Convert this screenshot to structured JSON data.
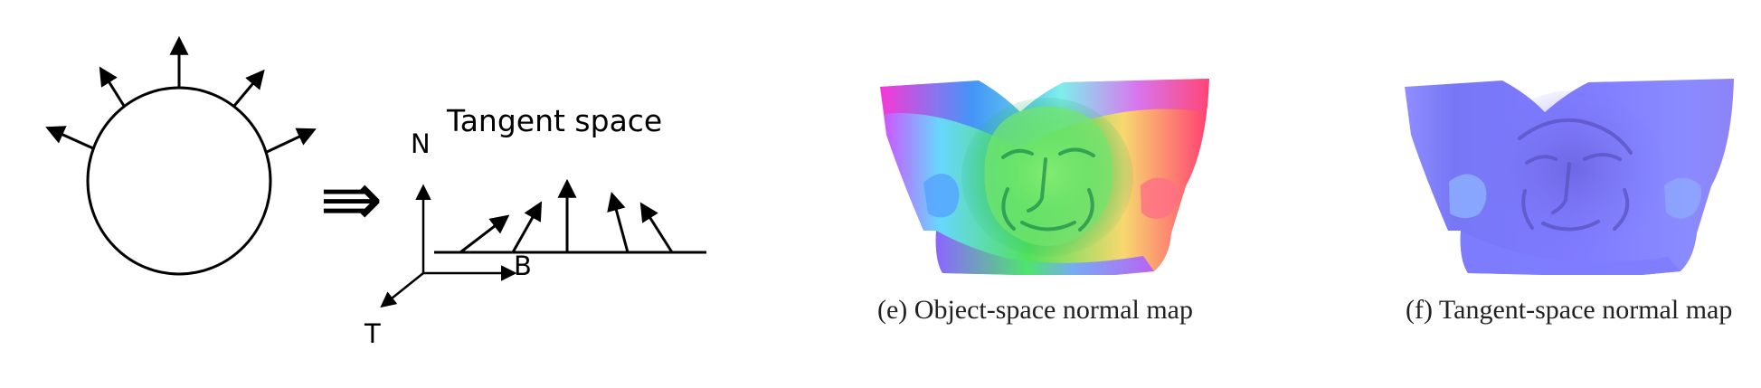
{
  "left_panel": {
    "title": "Tangent space",
    "axis_labels": {
      "n": "N",
      "b": "B",
      "t": "T"
    },
    "implies_symbol": "⇛"
  },
  "right_panel": {
    "captions": {
      "object_space": "(e) Object-space normal map",
      "tangent_space": "(f) Tangent-space normal map"
    }
  },
  "colors": {
    "line": "#000000",
    "object_map_green": "#4fe05c",
    "object_map_red": "#ff3f62",
    "object_map_blue": "#5d62ff",
    "tangent_map_blue": "#7f7cff",
    "tangent_map_dark": "#5b55c6"
  },
  "icons": {
    "normal_arrow": "arrowhead",
    "implication": "triple-arrow"
  }
}
